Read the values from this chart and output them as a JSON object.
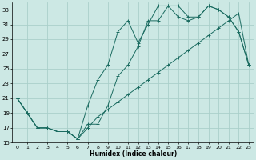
{
  "xlabel": "Humidex (Indice chaleur)",
  "background_color": "#cce8e4",
  "grid_color": "#aacfca",
  "line_color": "#1a6b60",
  "xlim": [
    -0.5,
    23.5
  ],
  "ylim": [
    15,
    34
  ],
  "xticks": [
    0,
    1,
    2,
    3,
    4,
    5,
    6,
    7,
    8,
    9,
    10,
    11,
    12,
    13,
    14,
    15,
    16,
    17,
    18,
    19,
    20,
    21,
    22,
    23
  ],
  "yticks": [
    15,
    17,
    19,
    21,
    23,
    25,
    27,
    29,
    31,
    33
  ],
  "series1_x": [
    0,
    1,
    2,
    3,
    4,
    5,
    6,
    7,
    8,
    9,
    10,
    11,
    12,
    13,
    14,
    15,
    16,
    17,
    18,
    19,
    20,
    21,
    22,
    23
  ],
  "series1_y": [
    21,
    19,
    17,
    17,
    16.5,
    16.5,
    15.5,
    17.5,
    17.5,
    20,
    24,
    25.5,
    28,
    31.5,
    31.5,
    33.5,
    33.5,
    32,
    32,
    33.5,
    33,
    32,
    30,
    25.5
  ],
  "series2_x": [
    0,
    1,
    2,
    3,
    4,
    5,
    6,
    7,
    8,
    9,
    10,
    11,
    12,
    13,
    14,
    15,
    16,
    17,
    18,
    19,
    20,
    21,
    22,
    23
  ],
  "series2_y": [
    21,
    19,
    17,
    17,
    16.5,
    16.5,
    15.5,
    20,
    23.5,
    25.5,
    30,
    31.5,
    28.5,
    31,
    33.5,
    33.5,
    32,
    31.5,
    32,
    33.5,
    33,
    32,
    30,
    25.5
  ],
  "series3_x": [
    0,
    1,
    2,
    3,
    4,
    5,
    6,
    7,
    8,
    9,
    10,
    11,
    12,
    13,
    14,
    15,
    16,
    17,
    18,
    19,
    20,
    21,
    22,
    23
  ],
  "series3_y": [
    21,
    19,
    17,
    17,
    16.5,
    16.5,
    15.5,
    17,
    18.5,
    19.5,
    20.5,
    21.5,
    22.5,
    23.5,
    24.5,
    25.5,
    26.5,
    27.5,
    28.5,
    29.5,
    30.5,
    31.5,
    32.5,
    25.5
  ]
}
